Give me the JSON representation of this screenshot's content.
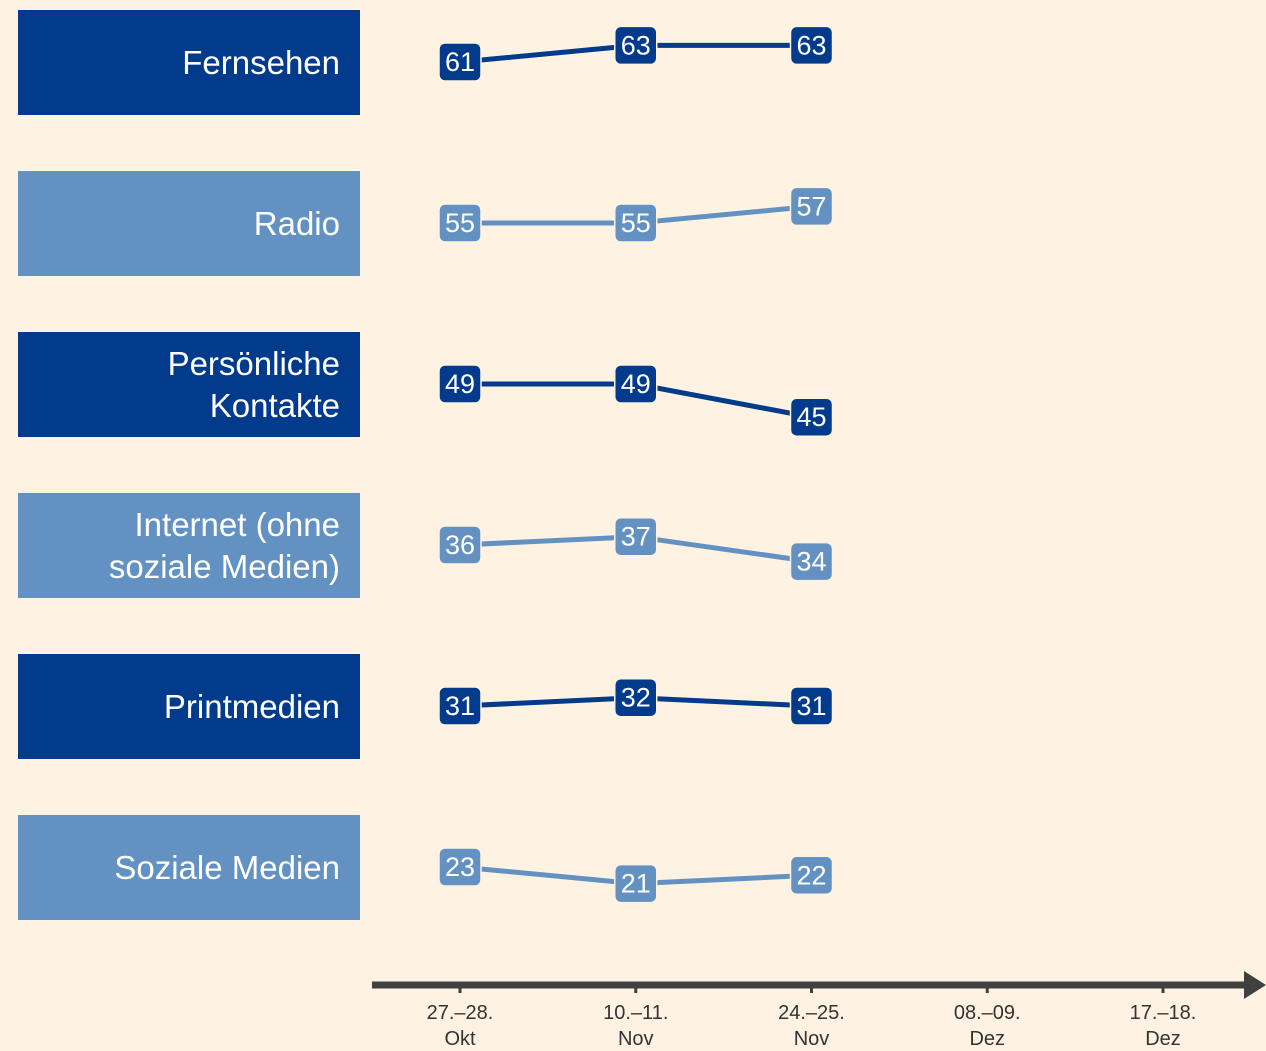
{
  "chart_data": {
    "type": "line",
    "categories": [
      "27.–28. Okt",
      "10.–11. Nov",
      "24.–25. Nov",
      "08.–09. Dez",
      "17.–18. Dez"
    ],
    "series": [
      {
        "name": "Fernsehen",
        "color": "#023a8c",
        "values": [
          61,
          63,
          63,
          null,
          null
        ]
      },
      {
        "name": "Radio",
        "color": "#6392c2",
        "values": [
          55,
          55,
          57,
          null,
          null
        ]
      },
      {
        "name": "Persönliche Kontakte",
        "color": "#023a8c",
        "values": [
          49,
          49,
          45,
          null,
          null
        ]
      },
      {
        "name": "Internet (ohne soziale Medien)",
        "color": "#6392c2",
        "values": [
          36,
          37,
          34,
          null,
          null
        ]
      },
      {
        "name": "Printmedien",
        "color": "#023a8c",
        "values": [
          31,
          32,
          31,
          null,
          null
        ]
      },
      {
        "name": "Soziale Medien",
        "color": "#6392c2",
        "values": [
          23,
          21,
          22,
          null,
          null
        ]
      }
    ]
  }
}
